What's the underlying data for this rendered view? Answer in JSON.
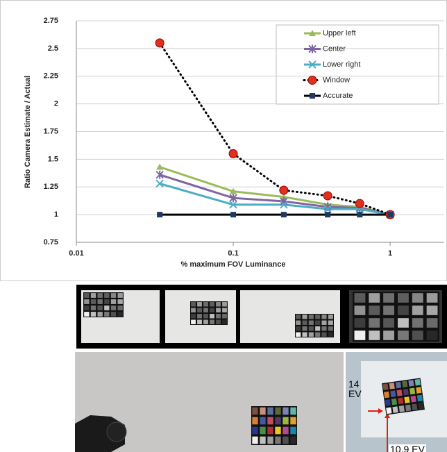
{
  "chart_data": {
    "type": "line",
    "log_x": true,
    "grid": true,
    "legend": "upper right",
    "y_label": "Ratio Camera Estimate / Actual",
    "x_label": "% maximum FOV Luminance",
    "x": [
      0.034,
      0.1,
      0.21,
      0.4,
      0.64,
      1
    ],
    "xlim": [
      0.01,
      2.2
    ],
    "xticks": [
      0.01,
      0.1,
      1
    ],
    "ylim": [
      0.75,
      2.75
    ],
    "yticks": [
      0.75,
      1,
      1.25,
      1.5,
      1.75,
      2,
      2.25,
      2.5,
      2.75
    ],
    "series": [
      {
        "name": "Upper left",
        "color": "#9bbb59",
        "marker": "triangle",
        "values": [
          1.43,
          1.21,
          1.16,
          1.09,
          1.07,
          1.0
        ]
      },
      {
        "name": "Center",
        "color": "#8064a2",
        "marker": "star",
        "values": [
          1.36,
          1.15,
          1.12,
          1.07,
          1.06,
          1.0
        ]
      },
      {
        "name": "Lower right",
        "color": "#4bacc6",
        "marker": "x",
        "values": [
          1.28,
          1.09,
          1.09,
          1.05,
          1.05,
          1.0
        ]
      },
      {
        "name": "Window",
        "color": "#000000",
        "marker": "circle",
        "marker_color": "#e03020",
        "dash": "dotted",
        "values": [
          2.55,
          1.55,
          1.22,
          1.17,
          1.1,
          1.0
        ]
      },
      {
        "name": "Accurate",
        "color": "#000000",
        "marker": "square",
        "marker_color": "#1f3864",
        "values": [
          1,
          1,
          1,
          1,
          1,
          1
        ]
      }
    ]
  },
  "photos": {
    "annotations": [
      "14 EV",
      "10.9 EV"
    ]
  }
}
